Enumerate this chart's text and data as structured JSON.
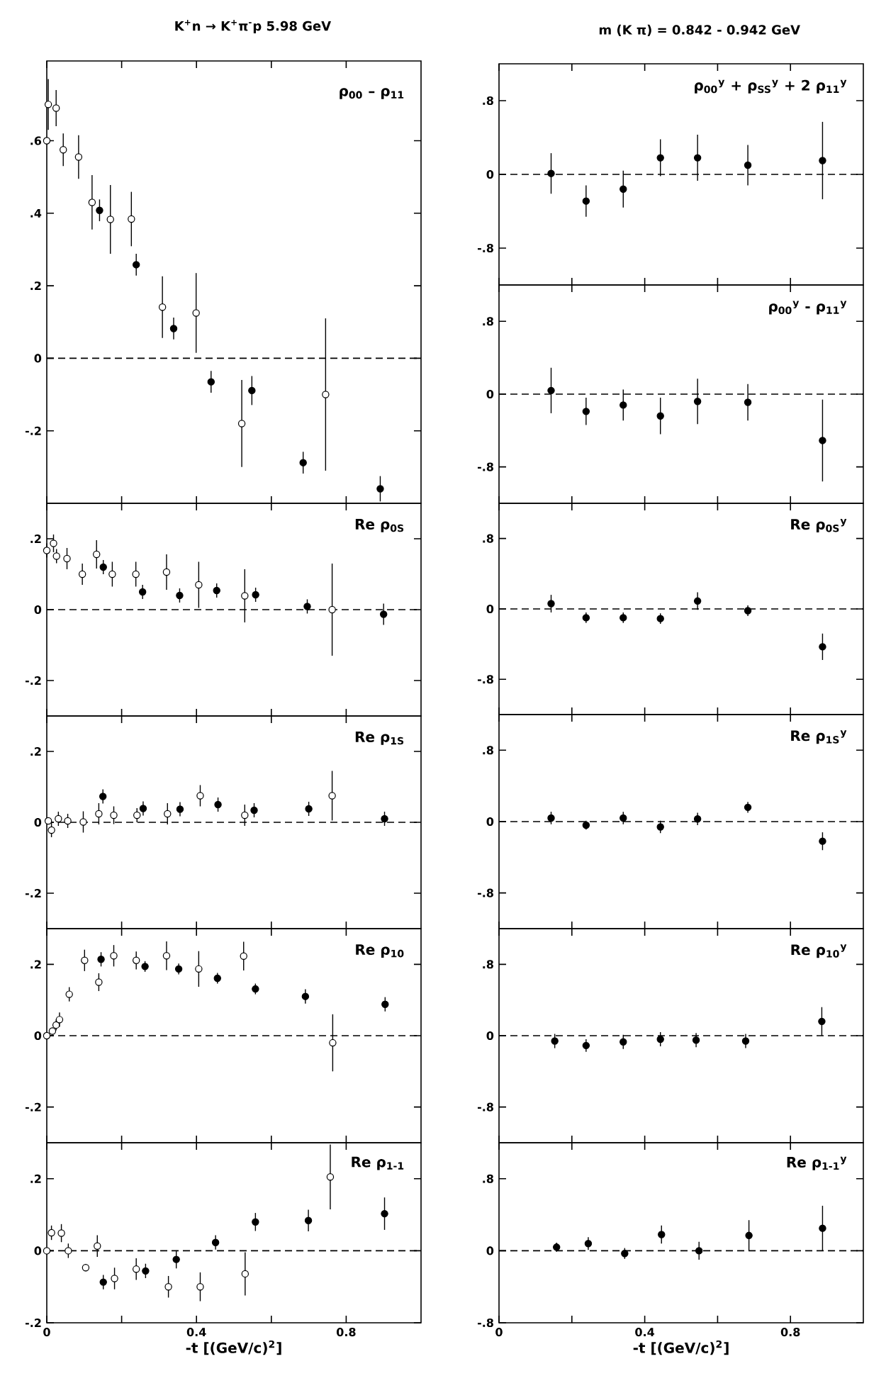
{
  "chart_data": [
    {
      "type": "scatter",
      "title": "K$^{+}$n → K$^{+}$π$^{-}$p 5.98 GeV",
      "annotations": [
        "ρ$_{00}$ – ρ$_{11}$"
      ],
      "marker": "circle",
      "tick_labels": "y",
      "xlim": [
        0,
        1.0
      ],
      "ylim": [
        -0.4,
        0.82
      ],
      "xticks": [
        {
          "value": 0,
          "label": null
        },
        {
          "value": 0.2,
          "label": null
        },
        {
          "value": 0.4,
          "label": null
        },
        {
          "value": 0.6,
          "label": null
        },
        {
          "value": 0.8,
          "label": null
        }
      ],
      "yticks": [
        {
          "value": 0.6,
          "label": ".6"
        },
        {
          "value": 0.4,
          "label": ".4"
        },
        {
          "value": 0.2,
          "label": ".2"
        },
        0,
        {
          "value": -0.2,
          "label": "-.2"
        }
      ],
      "ref_lines": [
        {
          "axis": "y",
          "value": 0,
          "line_style": "dashed"
        }
      ],
      "series": [
        {
          "color": "#ffffff",
          "x": [
            0.0,
            0.004,
            0.025,
            0.044,
            0.085,
            0.121,
            0.17,
            0.226,
            0.309,
            0.399,
            0.521,
            0.745
          ],
          "values": [
            0.6,
            0.7,
            0.69,
            0.575,
            0.555,
            0.43,
            0.383,
            0.384,
            0.141,
            0.125,
            -0.18,
            -0.1
          ],
          "errors": [
            0.01,
            0.07,
            0.05,
            0.045,
            0.06,
            0.075,
            0.095,
            0.075,
            0.085,
            0.11,
            0.12,
            0.21
          ]
        },
        {
          "color": "#000000",
          "x": [
            0.141,
            0.239,
            0.339,
            0.439,
            0.548,
            0.685,
            0.891
          ],
          "values": [
            0.408,
            0.258,
            0.082,
            -0.065,
            -0.089,
            -0.288,
            -0.36
          ],
          "errors": [
            0.03,
            0.03,
            0.03,
            0.03,
            0.04,
            0.03,
            0.035
          ]
        }
      ]
    },
    {
      "type": "scatter",
      "annotations": [
        "Re ρ$_{0S}$"
      ],
      "marker": "circle",
      "tick_labels": "y",
      "xlim": [
        0,
        1.0
      ],
      "ylim": [
        -0.3,
        0.3
      ],
      "xticks": [
        {
          "value": 0,
          "label": null
        },
        {
          "value": 0.2,
          "label": null
        },
        {
          "value": 0.4,
          "label": null
        },
        {
          "value": 0.6,
          "label": null
        },
        {
          "value": 0.8,
          "label": null
        }
      ],
      "yticks": [
        {
          "value": 0.2,
          "label": ".2"
        },
        0,
        {
          "value": -0.2,
          "label": "-.2"
        }
      ],
      "ref_lines": [
        {
          "axis": "y",
          "value": 0,
          "line_style": "dashed"
        }
      ],
      "series": [
        {
          "color": "#ffffff",
          "x": [
            0.0,
            0.018,
            0.026,
            0.054,
            0.095,
            0.133,
            0.175,
            0.238,
            0.32,
            0.406,
            0.529,
            0.7625
          ],
          "values": [
            0.167,
            0.187,
            0.151,
            0.144,
            0.1,
            0.156,
            0.1,
            0.1,
            0.106,
            0.07,
            0.039,
            0.0
          ],
          "errors": [
            0.02,
            0.025,
            0.02,
            0.03,
            0.03,
            0.04,
            0.035,
            0.035,
            0.05,
            0.065,
            0.075,
            0.13
          ]
        },
        {
          "color": "#000000",
          "x": [
            0.151,
            0.256,
            0.355,
            0.454,
            0.558,
            0.696,
            0.9
          ],
          "values": [
            0.12,
            0.05,
            0.04,
            0.054,
            0.042,
            0.009,
            -0.013
          ],
          "errors": [
            0.02,
            0.02,
            0.02,
            0.02,
            0.02,
            0.02,
            0.03
          ]
        }
      ]
    },
    {
      "type": "scatter",
      "annotations": [
        "Re ρ$_{1S}$"
      ],
      "marker": "circle",
      "tick_labels": "y",
      "xlim": [
        0,
        1.0
      ],
      "ylim": [
        -0.3,
        0.3
      ],
      "xticks": [
        {
          "value": 0,
          "label": null
        },
        {
          "value": 0.2,
          "label": null
        },
        {
          "value": 0.4,
          "label": null
        },
        {
          "value": 0.6,
          "label": null
        },
        {
          "value": 0.8,
          "label": null
        }
      ],
      "yticks": [
        {
          "value": 0.2,
          "label": ".2"
        },
        0,
        {
          "value": -0.2,
          "label": "-.2"
        }
      ],
      "ref_lines": [
        {
          "axis": "y",
          "value": 0,
          "line_style": "dashed"
        }
      ],
      "series": [
        {
          "color": "#ffffff",
          "x": [
            0.004,
            0.0125,
            0.031,
            0.056,
            0.0975,
            0.139,
            0.179,
            0.241,
            0.3225,
            0.41,
            0.529,
            0.7625
          ],
          "values": [
            0.004,
            -0.022,
            0.01,
            0.004,
            0.001,
            0.024,
            0.02,
            0.02,
            0.024,
            0.075,
            0.02,
            0.075
          ],
          "errors": [
            0.01,
            0.02,
            0.02,
            0.02,
            0.03,
            0.03,
            0.025,
            0.02,
            0.03,
            0.03,
            0.03,
            0.07
          ]
        },
        {
          "color": "#000000",
          "x": [
            0.15,
            0.2575,
            0.356,
            0.4575,
            0.554,
            0.7,
            0.9025
          ],
          "values": [
            0.073,
            0.039,
            0.037,
            0.05,
            0.034,
            0.038,
            0.01
          ],
          "errors": [
            0.02,
            0.02,
            0.02,
            0.02,
            0.02,
            0.02,
            0.02
          ]
        }
      ]
    },
    {
      "type": "scatter",
      "annotations": [
        "Re ρ$_{10}$"
      ],
      "marker": "circle",
      "tick_labels": "y",
      "xlim": [
        0,
        1.0
      ],
      "ylim": [
        -0.3,
        0.3
      ],
      "xticks": [
        {
          "value": 0,
          "label": null
        },
        {
          "value": 0.2,
          "label": null
        },
        {
          "value": 0.4,
          "label": null
        },
        {
          "value": 0.6,
          "label": null
        },
        {
          "value": 0.8,
          "label": null
        }
      ],
      "yticks": [
        {
          "value": 0.2,
          "label": ".2"
        },
        0,
        {
          "value": -0.2,
          "label": "-.2"
        }
      ],
      "ref_lines": [
        {
          "axis": "y",
          "value": 0,
          "line_style": "dashed"
        }
      ],
      "series": [
        {
          "color": "#ffffff",
          "x": [
            0.0,
            0.015,
            0.025,
            0.034,
            0.06,
            0.101,
            0.139,
            0.179,
            0.239,
            0.32,
            0.406,
            0.526,
            0.764
          ],
          "values": [
            0.0,
            0.013,
            0.03,
            0.045,
            0.116,
            0.211,
            0.15,
            0.224,
            0.211,
            0.224,
            0.187,
            0.223,
            -0.02
          ],
          "errors": [
            0.01,
            0.01,
            0.015,
            0.02,
            0.02,
            0.03,
            0.025,
            0.03,
            0.025,
            0.04,
            0.05,
            0.04,
            0.08
          ]
        },
        {
          "color": "#000000",
          "x": [
            0.145,
            0.2625,
            0.3525,
            0.456,
            0.5575,
            0.691,
            0.904
          ],
          "values": [
            0.214,
            0.194,
            0.187,
            0.161,
            0.131,
            0.11,
            0.088
          ],
          "errors": [
            0.02,
            0.015,
            0.015,
            0.015,
            0.015,
            0.02,
            0.02
          ]
        }
      ]
    },
    {
      "type": "scatter",
      "xlabel": "-t [(GeV/c)$^{2}$]",
      "annotations": [
        "Re ρ$_{1-1}$"
      ],
      "marker": "circle",
      "xlim": [
        0,
        1.0
      ],
      "ylim": [
        -0.2,
        0.3
      ],
      "xticks": [
        0,
        {
          "value": 0.2,
          "label": null
        },
        0.4,
        {
          "value": 0.6,
          "label": null
        },
        0.8
      ],
      "yticks": [
        {
          "value": 0.2,
          "label": ".2"
        },
        0,
        {
          "value": -0.2,
          "label": "-.2"
        }
      ],
      "ref_lines": [
        {
          "axis": "y",
          "value": 0,
          "line_style": "dashed"
        }
      ],
      "series": [
        {
          "color": "#ffffff",
          "x": [
            0.0,
            0.0125,
            0.039,
            0.0575,
            0.104,
            0.135,
            0.181,
            0.239,
            0.325,
            0.41,
            0.53,
            0.7575
          ],
          "values": [
            0.0,
            0.05,
            0.049,
            0.0,
            -0.047,
            0.013,
            -0.077,
            -0.051,
            -0.1,
            -0.1,
            -0.064,
            0.205
          ],
          "errors": [
            0.01,
            0.02,
            0.025,
            0.02,
            0.01,
            0.03,
            0.03,
            0.03,
            0.03,
            0.04,
            0.06,
            0.09
          ]
        },
        {
          "color": "#000000",
          "x": [
            0.151,
            0.264,
            0.346,
            0.451,
            0.5575,
            0.699,
            0.9025
          ],
          "values": [
            -0.087,
            -0.056,
            -0.024,
            0.023,
            0.08,
            0.084,
            0.103
          ],
          "errors": [
            0.02,
            0.02,
            0.025,
            0.02,
            0.025,
            0.03,
            0.045
          ]
        }
      ]
    },
    {
      "type": "scatter",
      "title": "m (K π) = 0.842 - 0.942 GeV",
      "annotations": [
        "ρ$_{00}$$^{y}$ + ρ$_{SS}$$^{y}$ + 2 ρ$_{11}$$^{y}$"
      ],
      "marker": "circle",
      "tick_labels": "y",
      "xlim": [
        0,
        1.0
      ],
      "ylim": [
        -1.2,
        1.2
      ],
      "xticks": [
        {
          "value": 0,
          "label": null
        },
        {
          "value": 0.2,
          "label": null
        },
        {
          "value": 0.4,
          "label": null
        },
        {
          "value": 0.6,
          "label": null
        },
        {
          "value": 0.8,
          "label": null
        }
      ],
      "yticks": [
        {
          "value": 0.8,
          "label": ".8"
        },
        0,
        {
          "value": -0.8,
          "label": "-.8"
        }
      ],
      "ref_lines": [
        {
          "axis": "y",
          "value": 0,
          "line_style": "dashed"
        }
      ],
      "series": [
        {
          "color": "#000000",
          "x": [
            0.143,
            0.239,
            0.341,
            0.443,
            0.545,
            0.683,
            0.888
          ],
          "values": [
            0.01,
            -0.29,
            -0.16,
            0.18,
            0.18,
            0.1,
            0.15
          ],
          "errors": [
            0.22,
            0.17,
            0.2,
            0.2,
            0.25,
            0.22,
            0.42
          ]
        }
      ]
    },
    {
      "type": "scatter",
      "annotations": [
        "ρ$_{00}$$^{y}$ - ρ$_{11}$$^{y}$"
      ],
      "marker": "circle",
      "tick_labels": "y",
      "xlim": [
        0,
        1.0
      ],
      "ylim": [
        -1.2,
        1.2
      ],
      "xticks": [
        {
          "value": 0,
          "label": null
        },
        {
          "value": 0.2,
          "label": null
        },
        {
          "value": 0.4,
          "label": null
        },
        {
          "value": 0.6,
          "label": null
        },
        {
          "value": 0.8,
          "label": null
        }
      ],
      "yticks": [
        {
          "value": 0.8,
          "label": ".8"
        },
        0,
        {
          "value": -0.8,
          "label": "-.8"
        }
      ],
      "ref_lines": [
        {
          "axis": "y",
          "value": 0,
          "line_style": "dashed"
        }
      ],
      "series": [
        {
          "color": "#000000",
          "x": [
            0.143,
            0.239,
            0.341,
            0.443,
            0.545,
            0.683,
            0.888
          ],
          "values": [
            0.04,
            -0.19,
            -0.12,
            -0.24,
            -0.08,
            -0.09,
            -0.51
          ],
          "errors": [
            0.25,
            0.15,
            0.17,
            0.2,
            0.25,
            0.2,
            0.45
          ]
        }
      ]
    },
    {
      "type": "scatter",
      "annotations": [
        "Re ρ$_{0S}$$^{y}$"
      ],
      "marker": "circle",
      "tick_labels": "y",
      "xlim": [
        0,
        1.0
      ],
      "ylim": [
        -1.2,
        1.2
      ],
      "xticks": [
        {
          "value": 0,
          "label": null
        },
        {
          "value": 0.2,
          "label": null
        },
        {
          "value": 0.4,
          "label": null
        },
        {
          "value": 0.6,
          "label": null
        },
        {
          "value": 0.8,
          "label": null
        }
      ],
      "yticks": [
        {
          "value": 0.8,
          "label": ".8"
        },
        0,
        {
          "value": -0.8,
          "label": "-.8"
        }
      ],
      "ref_lines": [
        {
          "axis": "y",
          "value": 0,
          "line_style": "dashed"
        }
      ],
      "series": [
        {
          "color": "#000000",
          "x": [
            0.143,
            0.239,
            0.341,
            0.443,
            0.545,
            0.683,
            0.888
          ],
          "values": [
            0.06,
            -0.1,
            -0.1,
            -0.11,
            0.09,
            -0.02,
            -0.43
          ],
          "errors": [
            0.1,
            0.06,
            0.06,
            0.06,
            0.1,
            0.06,
            0.15
          ]
        }
      ]
    },
    {
      "type": "scatter",
      "annotations": [
        "Re ρ$_{1S}$$^{y}$"
      ],
      "marker": "circle",
      "tick_labels": "y",
      "xlim": [
        0,
        1.0
      ],
      "ylim": [
        -1.2,
        1.2
      ],
      "xticks": [
        {
          "value": 0,
          "label": null
        },
        {
          "value": 0.2,
          "label": null
        },
        {
          "value": 0.4,
          "label": null
        },
        {
          "value": 0.6,
          "label": null
        },
        {
          "value": 0.8,
          "label": null
        }
      ],
      "yticks": [
        {
          "value": 0.8,
          "label": ".8"
        },
        0,
        {
          "value": -0.8,
          "label": "-.8"
        }
      ],
      "ref_lines": [
        {
          "axis": "y",
          "value": 0,
          "line_style": "dashed"
        }
      ],
      "series": [
        {
          "color": "#000000",
          "x": [
            0.143,
            0.239,
            0.341,
            0.443,
            0.545,
            0.683,
            0.888
          ],
          "values": [
            0.04,
            -0.04,
            0.04,
            -0.06,
            0.03,
            0.16,
            -0.22
          ],
          "errors": [
            0.07,
            0.05,
            0.07,
            0.07,
            0.07,
            0.06,
            0.1
          ]
        }
      ]
    },
    {
      "type": "scatter",
      "annotations": [
        "Re ρ$_{10}$$^{y}$"
      ],
      "marker": "circle",
      "tick_labels": "y",
      "xlim": [
        0,
        1.0
      ],
      "ylim": [
        -1.2,
        1.2
      ],
      "xticks": [
        {
          "value": 0,
          "label": null
        },
        {
          "value": 0.2,
          "label": null
        },
        {
          "value": 0.4,
          "label": null
        },
        {
          "value": 0.6,
          "label": null
        },
        {
          "value": 0.8,
          "label": null
        }
      ],
      "yticks": [
        {
          "value": 0.8,
          "label": ".8"
        },
        0,
        {
          "value": -0.8,
          "label": "-.8"
        }
      ],
      "ref_lines": [
        {
          "axis": "y",
          "value": 0,
          "line_style": "dashed"
        }
      ],
      "series": [
        {
          "color": "#000000",
          "x": [
            0.153,
            0.239,
            0.341,
            0.443,
            0.541,
            0.677,
            0.886
          ],
          "values": [
            -0.06,
            -0.11,
            -0.07,
            -0.04,
            -0.05,
            -0.06,
            0.16
          ],
          "errors": [
            0.08,
            0.07,
            0.08,
            0.08,
            0.08,
            0.08,
            0.16
          ]
        }
      ]
    },
    {
      "type": "scatter",
      "xlabel": "-t [(GeV/c)$^{2}$]",
      "annotations": [
        "Re ρ$_{1-1}$$^{y}$"
      ],
      "marker": "circle",
      "xlim": [
        0,
        1.0
      ],
      "ylim": [
        -0.8,
        1.2
      ],
      "xticks": [
        0,
        {
          "value": 0.2,
          "label": null
        },
        0.4,
        {
          "value": 0.6,
          "label": null
        },
        0.8
      ],
      "yticks": [
        {
          "value": 0.8,
          "label": ".8"
        },
        0,
        {
          "value": -0.8,
          "label": "-.8"
        }
      ],
      "ref_lines": [
        {
          "axis": "y",
          "value": 0,
          "line_style": "dashed"
        }
      ],
      "series": [
        {
          "color": "#000000",
          "x": [
            0.158,
            0.245,
            0.345,
            0.446,
            0.549,
            0.686,
            0.888
          ],
          "values": [
            0.04,
            0.08,
            -0.03,
            0.18,
            0.0,
            0.17,
            0.25
          ],
          "errors": [
            0.05,
            0.07,
            0.06,
            0.1,
            0.1,
            0.17,
            0.25
          ]
        }
      ]
    }
  ]
}
